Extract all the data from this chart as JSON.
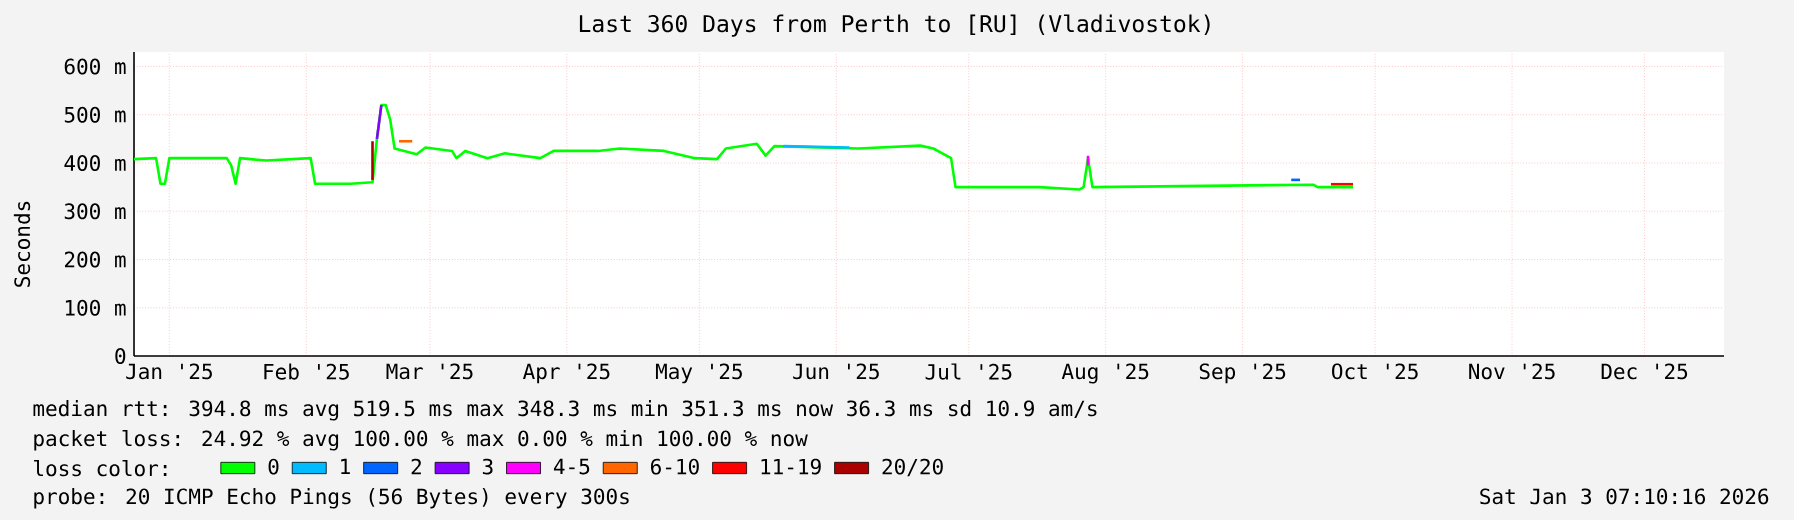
{
  "chart_data": {
    "type": "line",
    "title": "Last 360 Days from Perth to [RU] (Vladivostok)",
    "ylabel": "Seconds",
    "x": [
      "2025-01-08",
      "2025-01-13",
      "2025-01-14",
      "2025-01-15",
      "2025-01-16",
      "2025-01-29",
      "2025-01-30",
      "2025-01-31",
      "2025-02-01",
      "2025-02-07",
      "2025-02-17",
      "2025-02-18",
      "2025-02-26",
      "2025-03-03",
      "2025-03-04",
      "2025-03-05",
      "2025-03-06",
      "2025-03-07",
      "2025-03-08",
      "2025-03-13",
      "2025-03-15",
      "2025-03-21",
      "2025-03-22",
      "2025-03-24",
      "2025-03-29",
      "2025-04-02",
      "2025-04-10",
      "2025-04-13",
      "2025-04-23",
      "2025-04-28",
      "2025-05-08",
      "2025-05-15",
      "2025-05-20",
      "2025-05-22",
      "2025-05-29",
      "2025-05-31",
      "2025-06-02",
      "2025-06-21",
      "2025-07-05",
      "2025-07-08",
      "2025-07-10",
      "2025-07-12",
      "2025-07-13",
      "2025-08-01",
      "2025-08-10",
      "2025-08-11",
      "2025-08-12",
      "2025-08-13",
      "2025-10-02",
      "2025-10-03",
      "2025-10-11"
    ],
    "series": [
      {
        "name": "0",
        "color": "#00ff00",
        "values": [
          408,
          410,
          357,
          357,
          410,
          410,
          395,
          357,
          410,
          405,
          410,
          357,
          357,
          360,
          450,
          520,
          520,
          490,
          430,
          418,
          432,
          425,
          410,
          425,
          410,
          420,
          410,
          425,
          425,
          430,
          425,
          410,
          408,
          430,
          440,
          415,
          435,
          430,
          436,
          430,
          420,
          410,
          350,
          350,
          345,
          350,
          410,
          350,
          355,
          350,
          350
        ]
      },
      {
        "name": "1",
        "color": "#00bbff",
        "x": [
          "2025-06-04",
          "2025-06-19"
        ],
        "values": [
          435,
          432
        ]
      },
      {
        "name": "2",
        "color": "#0066ff",
        "x": [
          "2025-09-27",
          "2025-09-29"
        ],
        "values": [
          365,
          365
        ]
      },
      {
        "name": "3",
        "color": "#8800ff",
        "x": [
          "2025-03-04",
          "2025-03-05"
        ],
        "values": [
          450,
          520
        ]
      },
      {
        "name": "4-5",
        "color": "#ff00ff",
        "x": [
          "2025-08-12",
          "2025-08-12"
        ],
        "values": [
          395,
          415
        ]
      },
      {
        "name": "6-10",
        "color": "#ff6600",
        "x": [
          "2025-03-09",
          "2025-03-12"
        ],
        "values": [
          445,
          445
        ]
      },
      {
        "name": "11-19",
        "color": "#ff0000",
        "x": [
          "2025-10-06",
          "2025-10-11"
        ],
        "values": [
          356,
          356
        ]
      },
      {
        "name": "20/20",
        "color": "#aa0000",
        "x": [
          "2025-03-03",
          "2025-03-03"
        ],
        "values": [
          365,
          445
        ]
      }
    ],
    "legend_title": "loss color:",
    "legend": "bottom",
    "xlim": [
      "2025-01-08",
      "2026-01-03"
    ],
    "xticks": [
      {
        "value": "2025-01-16",
        "label": "Jan '25"
      },
      {
        "value": "2025-02-16",
        "label": "Feb '25"
      },
      {
        "value": "2025-03-16",
        "label": "Mar '25"
      },
      {
        "value": "2025-04-16",
        "label": "Apr '25"
      },
      {
        "value": "2025-05-16",
        "label": "May '25"
      },
      {
        "value": "2025-06-16",
        "label": "Jun '25"
      },
      {
        "value": "2025-07-16",
        "label": "Jul '25"
      },
      {
        "value": "2025-08-16",
        "label": "Aug '25"
      },
      {
        "value": "2025-09-16",
        "label": "Sep '25"
      },
      {
        "value": "2025-10-16",
        "label": "Oct '25"
      },
      {
        "value": "2025-11-16",
        "label": "Nov '25"
      },
      {
        "value": "2025-12-16",
        "label": "Dec '25"
      }
    ],
    "ylim": [
      0,
      630
    ],
    "yticks": [
      0,
      {
        "value": 100,
        "label": "100 m"
      },
      {
        "value": 200,
        "label": "200 m"
      },
      {
        "value": 300,
        "label": "300 m"
      },
      {
        "value": 400,
        "label": "400 m"
      },
      {
        "value": 500,
        "label": "500 m"
      },
      {
        "value": 600,
        "label": "600 m"
      }
    ],
    "grid": true,
    "annotations": [
      "median rtt:  394.8 ms avg  519.5 ms max  348.3 ms min  351.3 ms now  36.3 ms sd  10.9   am/s",
      "packet loss: 24.92 % avg  100.00 % max  0.00 % min  100.00 % now",
      "probe:       20 ICMP Echo Pings (56 Bytes) every 300s",
      "Sat Jan  3 07:10:16 2026"
    ]
  }
}
